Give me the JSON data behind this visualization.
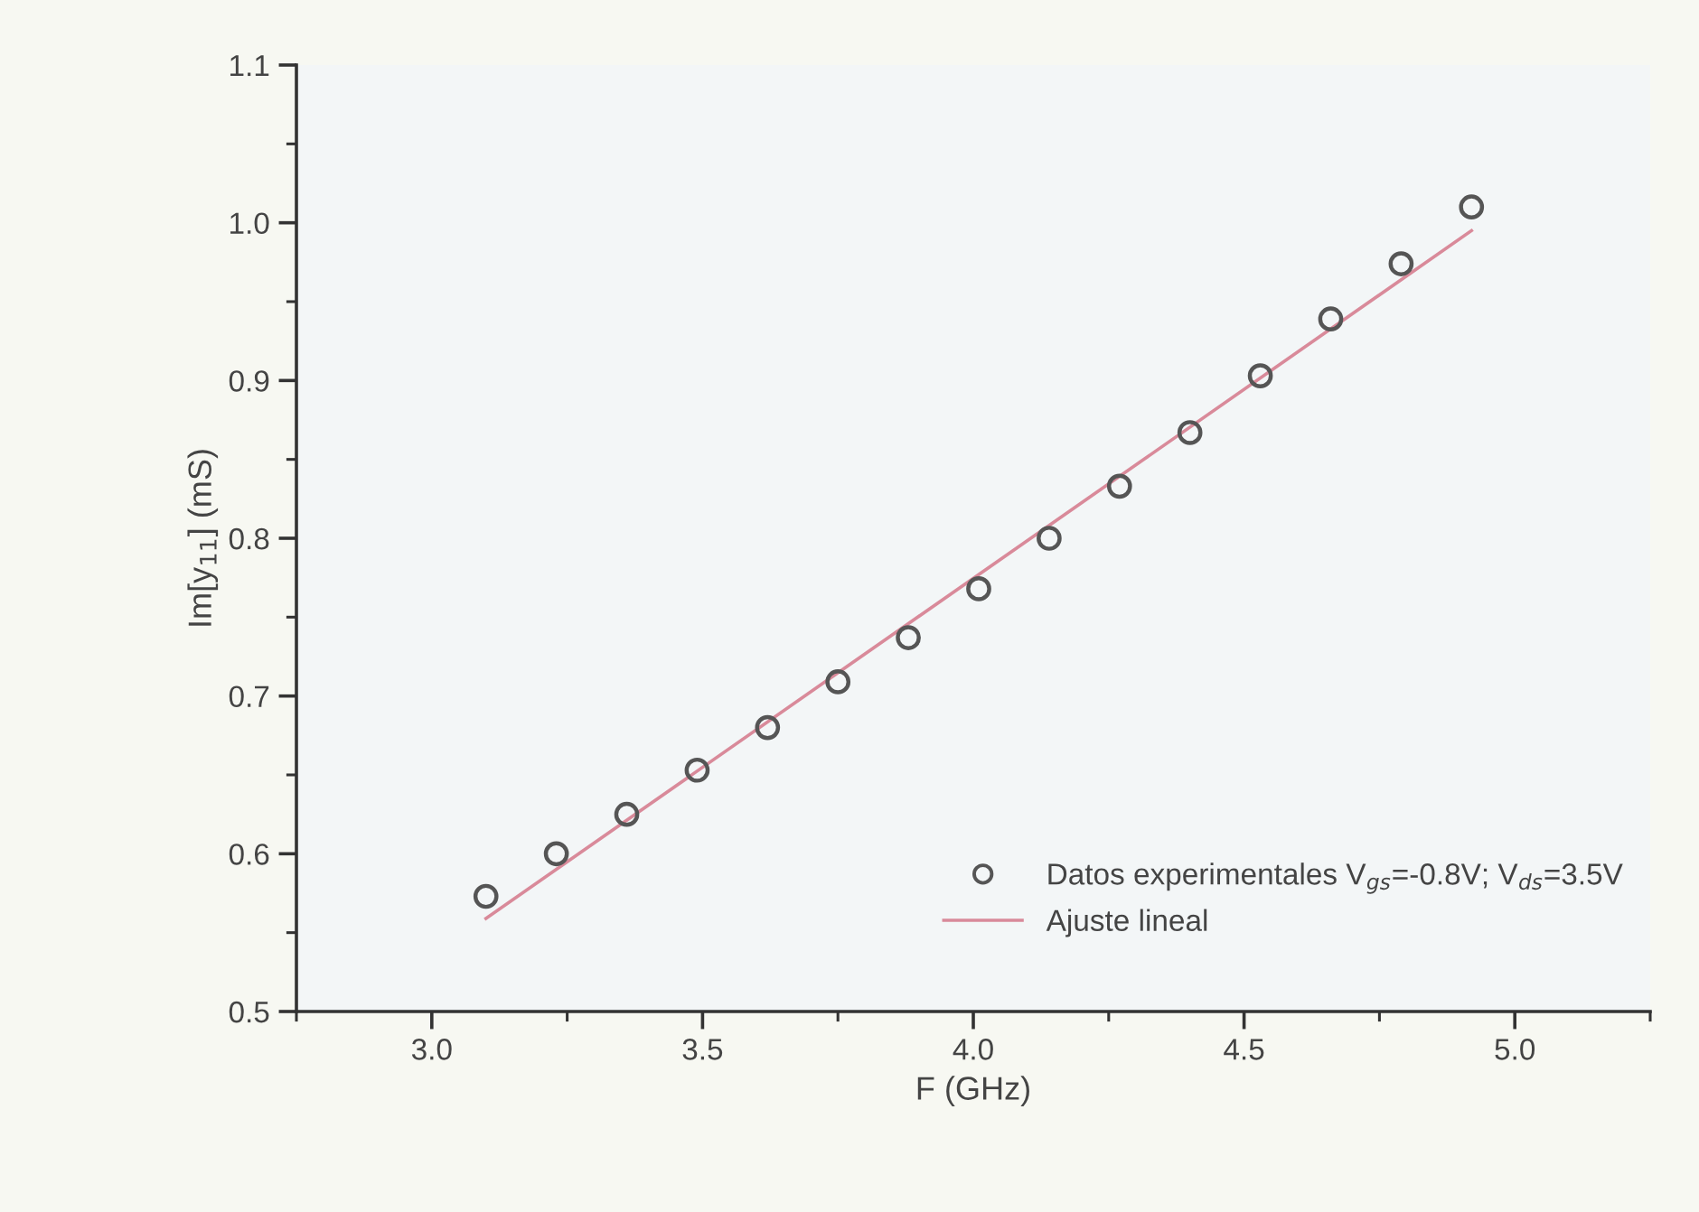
{
  "chart_data": {
    "type": "scatter",
    "xlabel": "F (GHz)",
    "ylabel": "Im[y$_{11}$] (mS)",
    "xlim": [
      2.75,
      5.25
    ],
    "xticks": [
      {
        "value": 3.0,
        "label": "3.0"
      },
      3.5,
      {
        "value": 4.0,
        "label": "4.0"
      },
      4.5,
      {
        "value": 5.0,
        "label": "5.0"
      }
    ],
    "ylim": [
      0.5,
      1.1
    ],
    "yticks": [
      0.5,
      0.6,
      0.7,
      0.8,
      0.9,
      {
        "value": 1.0,
        "label": "1.0"
      },
      {
        "value": 1.1,
        "label": "1.1"
      }
    ],
    "grid": false,
    "legend": "bottom right",
    "series": [
      {
        "name": "Datos experimentales V$_{gs}$=-0.8V; V$_{ds}$=3.5V",
        "marker": "circle",
        "color": "#555555",
        "x": [
          3.1,
          3.23,
          3.36,
          3.49,
          3.62,
          3.75,
          3.88,
          4.01,
          4.14,
          4.27,
          4.4,
          4.53,
          4.66,
          4.79,
          4.92
        ],
        "values": [
          0.573,
          0.6,
          0.625,
          0.653,
          0.68,
          0.709,
          0.737,
          0.768,
          0.8,
          0.833,
          0.867,
          0.903,
          0.939,
          0.974,
          1.01
        ]
      },
      {
        "name": "Ajuste lineal",
        "type": "line",
        "marker": "none",
        "line_style": "solid",
        "color": "#d98a9a",
        "x": [
          3.1,
          4.92
        ],
        "values": [
          0.559,
          0.995
        ]
      }
    ]
  }
}
